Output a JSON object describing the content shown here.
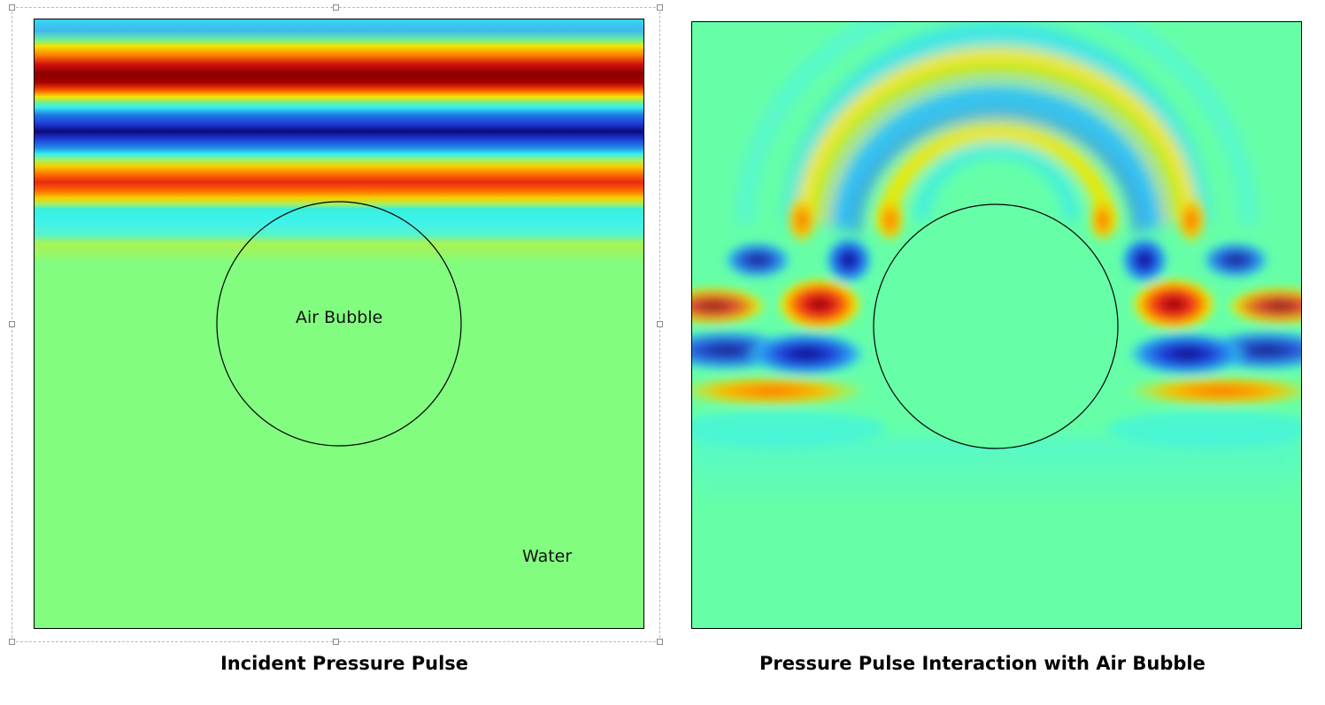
{
  "panels": [
    {
      "caption": "Incident Pressure Pulse",
      "bubble_label": "Air Bubble",
      "medium_label": "Water"
    },
    {
      "caption": "Pressure Pulse Interaction with Air Bubble"
    }
  ],
  "colors": {
    "dark_red": "#8b0000",
    "red": "#e31a1c",
    "orange": "#ff7f00",
    "yellow": "#f2e600",
    "light_green": "#9ff55f",
    "green_field": "#82fd7f",
    "teal_field": "#66ffa8",
    "cyan": "#36f0f0",
    "blue": "#1f3cd8",
    "dark_blue": "#0b0b7d"
  }
}
